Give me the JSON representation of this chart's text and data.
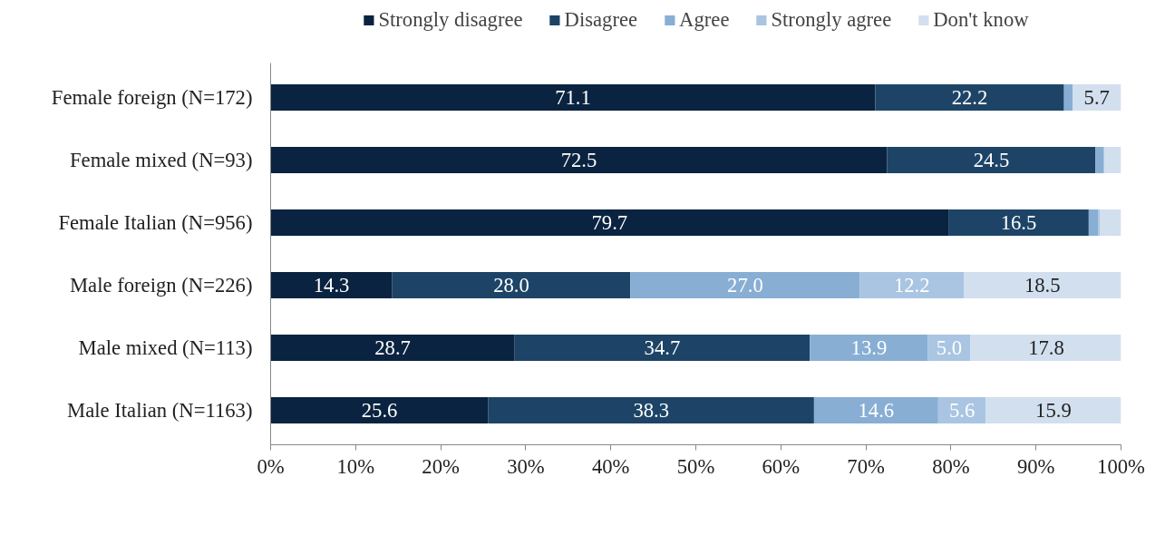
{
  "chart_data": {
    "type": "bar",
    "orientation": "horizontal",
    "stacked": true,
    "categories": [
      "Female foreign (N=172)",
      "Female mixed (N=93)",
      "Female Italian (N=956)",
      "Male foreign (N=226)",
      "Male mixed (N=113)",
      "Male Italian (N=1163)"
    ],
    "series": [
      {
        "name": "Strongly disagree",
        "color": "#0a2340",
        "values": [
          71.1,
          72.5,
          79.7,
          14.3,
          28.7,
          25.6
        ],
        "value_labels": [
          "71.1",
          "72.5",
          "79.7",
          "14.3",
          "28.7",
          "25.6"
        ]
      },
      {
        "name": "Disagree",
        "color": "#1d4466",
        "values": [
          22.2,
          24.5,
          16.5,
          28.0,
          34.7,
          38.3
        ],
        "value_labels": [
          "22.2",
          "24.5",
          "16.5",
          "28.0",
          "34.7",
          "38.3"
        ]
      },
      {
        "name": "Agree",
        "color": "#88aed4",
        "values": [
          1.0,
          1.0,
          1.1,
          27.0,
          13.9,
          14.6
        ],
        "value_labels": [
          null,
          null,
          null,
          "27.0",
          "13.9",
          "14.6"
        ]
      },
      {
        "name": "Strongly agree",
        "color": "#a9c5e2",
        "values": [
          0,
          0,
          0.2,
          12.2,
          5.0,
          5.6
        ],
        "value_labels": [
          null,
          null,
          null,
          "12.2",
          "5.0",
          "5.6"
        ]
      },
      {
        "name": "Don't know",
        "color": "#d2dfee",
        "values": [
          5.7,
          2.0,
          2.5,
          18.5,
          17.8,
          15.9
        ],
        "value_labels": [
          "5.7",
          null,
          null,
          "18.5",
          "17.8",
          "15.9"
        ]
      }
    ],
    "xlim": [
      0,
      100
    ],
    "xticks": [
      {
        "value": 0,
        "label": "0%"
      },
      {
        "value": 10,
        "label": "10%"
      },
      {
        "value": 20,
        "label": "20%"
      },
      {
        "value": 30,
        "label": "30%"
      },
      {
        "value": 40,
        "label": "40%"
      },
      {
        "value": 50,
        "label": "50%"
      },
      {
        "value": 60,
        "label": "60%"
      },
      {
        "value": 70,
        "label": "70%"
      },
      {
        "value": 80,
        "label": "80%"
      },
      {
        "value": 90,
        "label": "90%"
      },
      {
        "value": 100,
        "label": "100%"
      }
    ],
    "grid": false,
    "legend": "top"
  }
}
